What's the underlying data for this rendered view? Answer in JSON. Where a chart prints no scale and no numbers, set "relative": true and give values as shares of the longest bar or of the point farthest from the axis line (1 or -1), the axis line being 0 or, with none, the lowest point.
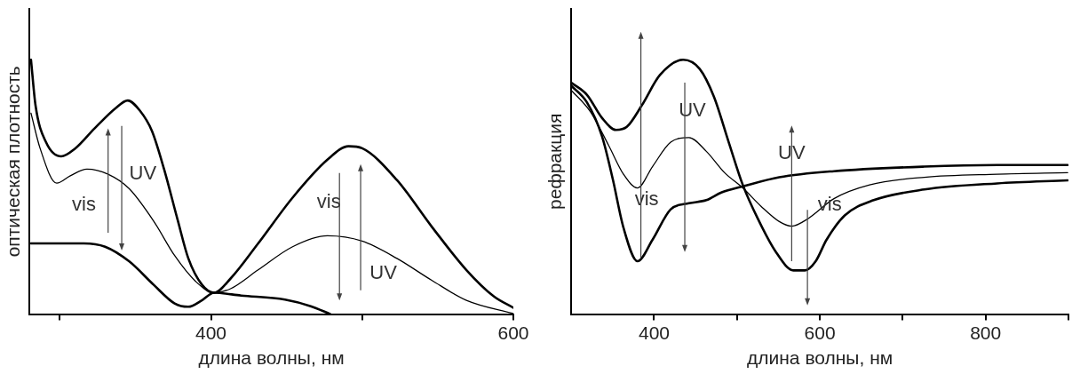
{
  "chart_data": [
    {
      "type": "line",
      "ylabel": "оптическая плотность",
      "xlabel": "длина волны, нм",
      "relative": true,
      "xlim": [
        280,
        600
      ],
      "xticks": [
        {
          "value": 300,
          "label": null
        },
        400,
        {
          "value": 500,
          "label": null
        },
        600
      ],
      "tick_labels": "x",
      "grid": false,
      "legend": false,
      "marker": "none",
      "line_style": "solid",
      "annotations": [
        "UV",
        "vis",
        "vis",
        "UV"
      ],
      "series": [
        {
          "color": "#000000",
          "x": [
            281,
            284,
            291,
            301,
            310,
            323,
            337,
            345,
            353,
            361,
            369,
            378,
            385,
            394,
            402,
            413,
            431,
            454,
            477,
            491,
            500,
            523,
            546,
            569,
            587,
            600
          ],
          "values": [
            1.0,
            0.82,
            0.675,
            0.62,
            0.65,
            0.73,
            0.81,
            0.84,
            0.8,
            0.72,
            0.57,
            0.37,
            0.22,
            0.116,
            0.084,
            0.14,
            0.276,
            0.458,
            0.607,
            0.66,
            0.652,
            0.527,
            0.344,
            0.173,
            0.07,
            0.025
          ]
        },
        {
          "color": "#000000",
          "x": [
            281,
            287,
            298,
            307,
            318,
            332,
            346,
            362,
            376,
            390,
            402,
            413,
            431,
            454,
            477,
            500,
            523,
            546,
            569,
            600
          ],
          "values": [
            0.79,
            0.652,
            0.515,
            0.544,
            0.57,
            0.55,
            0.493,
            0.367,
            0.23,
            0.128,
            0.084,
            0.1,
            0.173,
            0.265,
            0.308,
            0.287,
            0.219,
            0.133,
            0.054,
            0.002
          ]
        },
        {
          "color": "#000000",
          "x": [
            281,
            316,
            330,
            346,
            362,
            376,
            385,
            394,
            402,
            420,
            449,
            466,
            479
          ],
          "values": [
            0.278,
            0.278,
            0.265,
            0.207,
            0.116,
            0.042,
            0.029,
            0.054,
            0.084,
            0.073,
            0.057,
            0.031,
            0
          ]
        }
      ]
    },
    {
      "type": "line",
      "ylabel": "рефракция",
      "xlabel": "длина волны, нм",
      "relative": true,
      "xlim": [
        300,
        900
      ],
      "xticks": [
        400,
        {
          "value": 500,
          "label": null
        },
        600,
        {
          "value": 700,
          "label": null
        },
        800,
        {
          "value": 900,
          "label": null
        }
      ],
      "tick_labels": "x",
      "grid": false,
      "legend": false,
      "marker": "none",
      "line_style": "solid",
      "annotations": [
        "UV",
        "UV",
        "vis",
        "vis"
      ],
      "series": [
        {
          "color": "#000000",
          "x": [
            300,
            319,
            337,
            354,
            367,
            385,
            407,
            435,
            455,
            472,
            490,
            507,
            525,
            547,
            568,
            582,
            595,
            608,
            630,
            665,
            726,
            814,
            899
          ],
          "values": [
            0.91,
            0.862,
            0.772,
            0.724,
            0.736,
            0.82,
            0.94,
            1.0,
            0.964,
            0.856,
            0.676,
            0.508,
            0.376,
            0.244,
            0.172,
            0.172,
            0.208,
            0.292,
            0.388,
            0.448,
            0.49,
            0.514,
            0.526
          ]
        },
        {
          "color": "#000000",
          "x": [
            300,
            323,
            345,
            363,
            380,
            398,
            420,
            442,
            463,
            485,
            507,
            529,
            551,
            566,
            586,
            617,
            660,
            726,
            814,
            899
          ],
          "values": [
            0.88,
            0.796,
            0.664,
            0.55,
            0.496,
            0.58,
            0.676,
            0.694,
            0.64,
            0.556,
            0.496,
            0.424,
            0.364,
            0.346,
            0.376,
            0.454,
            0.508,
            0.538,
            0.55,
            0.556
          ]
        },
        {
          "color": "#000000",
          "x": [
            300,
            319,
            337,
            350,
            363,
            380,
            398,
            420,
            442,
            463,
            481,
            507,
            551,
            617,
            726,
            814,
            899
          ],
          "values": [
            0.898,
            0.832,
            0.7,
            0.532,
            0.34,
            0.208,
            0.292,
            0.412,
            0.436,
            0.448,
            0.478,
            0.502,
            0.538,
            0.562,
            0.58,
            0.586,
            0.586
          ]
        }
      ]
    }
  ]
}
